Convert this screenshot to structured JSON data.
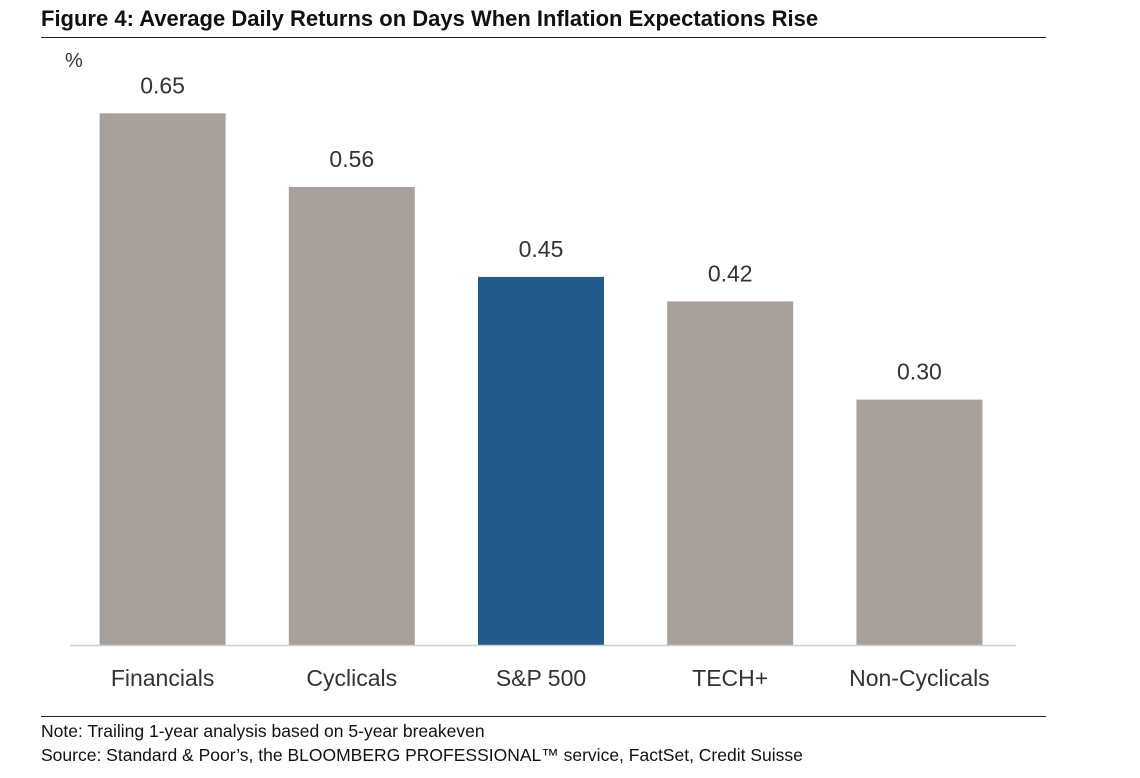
{
  "figure": {
    "title": "Figure 4: Average Daily Returns on Days When Inflation Expectations Rise",
    "unit_label": "%",
    "note": "Note: Trailing 1-year analysis based on 5-year breakeven",
    "source": "Source: Standard & Poor’s, the BLOOMBERG PROFESSIONAL™ service, FactSet, Credit Suisse"
  },
  "chart_data": {
    "type": "bar",
    "title": "Figure 4: Average Daily Returns on Days When Inflation Expectations Rise",
    "xlabel": "",
    "ylabel": "%",
    "categories": [
      "Financials",
      "Cyclicals",
      "S&P 500",
      "TECH+",
      "Non-Cyclicals"
    ],
    "values": [
      0.65,
      0.56,
      0.45,
      0.42,
      0.3
    ],
    "value_labels": [
      "0.65",
      "0.56",
      "0.45",
      "0.42",
      "0.30"
    ],
    "highlight_category": "S&P 500",
    "ylim": [
      0,
      0.7
    ],
    "grid": false,
    "legend": "none",
    "colors": {
      "default_bar": "#a8a19b",
      "highlight_bar": "#255b8a",
      "axis": "#cfcfcf"
    }
  }
}
